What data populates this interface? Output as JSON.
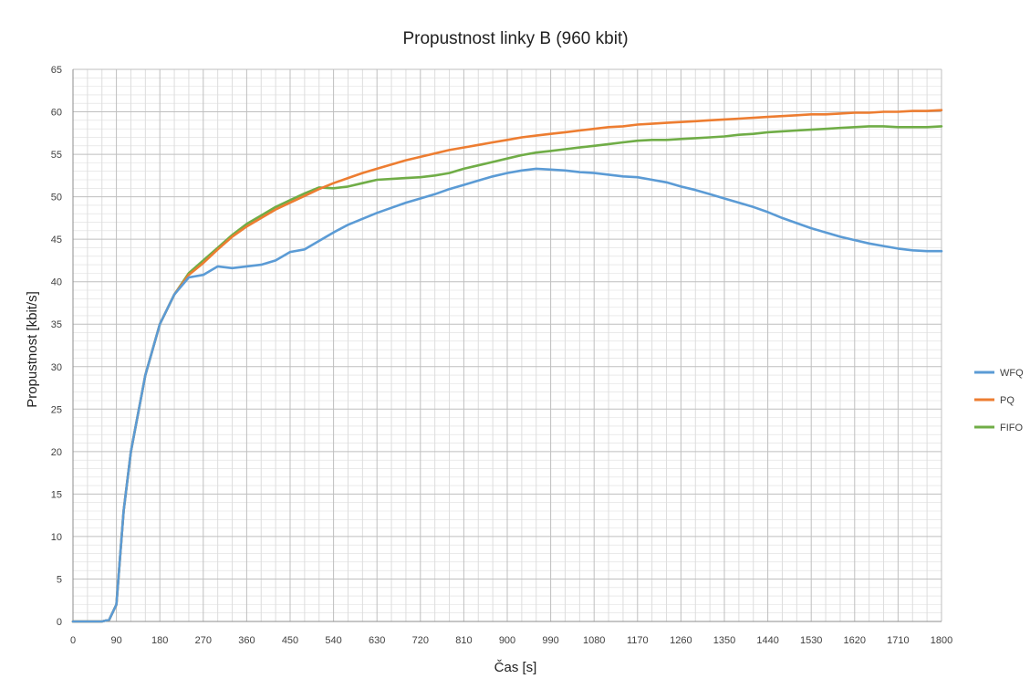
{
  "chart_data": {
    "type": "line",
    "title": "Propustnost linky B (960 kbit)",
    "xlabel": "Čas [s]",
    "ylabel": "Propustnost [kbit/s]",
    "xlim": [
      0,
      1800
    ],
    "ylim": [
      0,
      65
    ],
    "x_ticks": [
      0,
      90,
      180,
      270,
      360,
      450,
      540,
      630,
      720,
      810,
      900,
      990,
      1080,
      1170,
      1260,
      1350,
      1440,
      1530,
      1620,
      1710,
      1800
    ],
    "y_ticks": [
      0,
      5,
      10,
      15,
      20,
      25,
      30,
      35,
      40,
      45,
      50,
      55,
      60,
      65
    ],
    "x_minor_step": 30,
    "grid": true,
    "legend_position": "right",
    "colors": {
      "WFQ": "#5b9bd5",
      "PQ": "#ed7d31",
      "FIFO": "#70ad47",
      "grid_major": "#bfbfbf",
      "grid_minor": "#dddddd"
    },
    "series": [
      {
        "name": "WFQ",
        "x": [
          0,
          30,
          60,
          75,
          90,
          105,
          120,
          150,
          180,
          210,
          240,
          270,
          300,
          330,
          360,
          390,
          420,
          450,
          480,
          510,
          540,
          570,
          600,
          630,
          660,
          690,
          720,
          750,
          780,
          810,
          840,
          870,
          900,
          930,
          960,
          990,
          1020,
          1050,
          1080,
          1110,
          1140,
          1170,
          1200,
          1230,
          1260,
          1290,
          1320,
          1350,
          1380,
          1410,
          1440,
          1470,
          1500,
          1530,
          1560,
          1590,
          1620,
          1650,
          1680,
          1710,
          1740,
          1770,
          1800
        ],
        "y": [
          0,
          0,
          0,
          0.2,
          2,
          13,
          20,
          29,
          35,
          38.5,
          40.5,
          40.8,
          41.8,
          41.6,
          41.8,
          42.0,
          42.5,
          43.5,
          43.8,
          44.8,
          45.8,
          46.7,
          47.4,
          48.1,
          48.7,
          49.3,
          49.8,
          50.3,
          50.9,
          51.4,
          51.9,
          52.4,
          52.8,
          53.1,
          53.3,
          53.2,
          53.1,
          52.9,
          52.8,
          52.6,
          52.4,
          52.3,
          52.0,
          51.7,
          51.2,
          50.8,
          50.3,
          49.8,
          49.3,
          48.8,
          48.2,
          47.5,
          46.9,
          46.3,
          45.8,
          45.3,
          44.9,
          44.5,
          44.2,
          43.9,
          43.7,
          43.6,
          43.6
        ]
      },
      {
        "name": "PQ",
        "x": [
          0,
          30,
          60,
          75,
          90,
          105,
          120,
          150,
          180,
          210,
          240,
          270,
          300,
          330,
          360,
          390,
          420,
          450,
          480,
          510,
          540,
          570,
          600,
          630,
          660,
          690,
          720,
          750,
          780,
          810,
          840,
          870,
          900,
          930,
          960,
          990,
          1020,
          1050,
          1080,
          1110,
          1140,
          1170,
          1200,
          1230,
          1260,
          1290,
          1320,
          1350,
          1380,
          1410,
          1440,
          1470,
          1500,
          1530,
          1560,
          1590,
          1620,
          1650,
          1680,
          1710,
          1740,
          1770,
          1800
        ],
        "y": [
          0,
          0,
          0,
          0.2,
          2,
          13,
          20,
          29,
          35,
          38.5,
          40.8,
          42.2,
          43.8,
          45.3,
          46.5,
          47.5,
          48.5,
          49.3,
          50.1,
          50.9,
          51.6,
          52.2,
          52.8,
          53.3,
          53.8,
          54.3,
          54.7,
          55.1,
          55.5,
          55.8,
          56.1,
          56.4,
          56.7,
          57.0,
          57.2,
          57.4,
          57.6,
          57.8,
          58.0,
          58.2,
          58.3,
          58.5,
          58.6,
          58.7,
          58.8,
          58.9,
          59.0,
          59.1,
          59.2,
          59.3,
          59.4,
          59.5,
          59.6,
          59.7,
          59.7,
          59.8,
          59.9,
          59.9,
          60.0,
          60.0,
          60.1,
          60.1,
          60.2
        ]
      },
      {
        "name": "FIFO",
        "x": [
          0,
          30,
          60,
          75,
          90,
          105,
          120,
          150,
          180,
          210,
          240,
          270,
          300,
          330,
          360,
          390,
          420,
          450,
          480,
          510,
          540,
          570,
          600,
          630,
          660,
          690,
          720,
          750,
          780,
          810,
          840,
          870,
          900,
          930,
          960,
          990,
          1020,
          1050,
          1080,
          1110,
          1140,
          1170,
          1200,
          1230,
          1260,
          1290,
          1320,
          1350,
          1380,
          1410,
          1440,
          1470,
          1500,
          1530,
          1560,
          1590,
          1620,
          1650,
          1680,
          1710,
          1740,
          1770,
          1800
        ],
        "y": [
          0,
          0,
          0,
          0.2,
          2,
          13,
          20,
          29,
          35,
          38.5,
          41.0,
          42.5,
          44.0,
          45.5,
          46.8,
          47.8,
          48.8,
          49.6,
          50.4,
          51.1,
          51.0,
          51.2,
          51.6,
          52.0,
          52.1,
          52.2,
          52.3,
          52.5,
          52.8,
          53.3,
          53.7,
          54.1,
          54.5,
          54.9,
          55.2,
          55.4,
          55.6,
          55.8,
          56.0,
          56.2,
          56.4,
          56.6,
          56.7,
          56.7,
          56.8,
          56.9,
          57.0,
          57.1,
          57.3,
          57.4,
          57.6,
          57.7,
          57.8,
          57.9,
          58.0,
          58.1,
          58.2,
          58.3,
          58.3,
          58.2,
          58.2,
          58.2,
          58.3
        ]
      }
    ]
  }
}
